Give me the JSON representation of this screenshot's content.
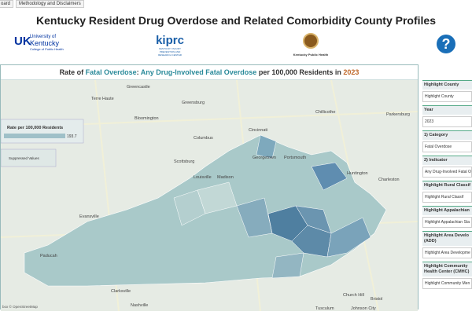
{
  "tabs": [
    "oard",
    "Methodology and Disclaimers"
  ],
  "header": {
    "title": "Kentucky Resident Drug Overdose and Related Comorbidity County Profiles",
    "logos": [
      {
        "mark": "UK",
        "name": "University of",
        "name2": "Kentucky",
        "sub": "College of Public Health"
      },
      {
        "mark": "kiprc",
        "sub": "KENTUCKY INJURY PREVENTION AND RESEARCH CENTER"
      },
      {
        "sub": "Kentucky Public Health"
      }
    ],
    "help": "?"
  },
  "map": {
    "title_parts": [
      "Rate of ",
      "Fatal Overdose",
      ": ",
      "Any Drug-Involved Fatal Overdose",
      " per 100,000 Residents in ",
      "2023"
    ],
    "legend": {
      "title": "Rate per 100,000 Residents",
      "max": "193.7",
      "suppressed": "Suppressed Values"
    },
    "places": [
      "Greencastle",
      "Greensburg",
      "Terre Haute",
      "Bloomington",
      "Cincinnati",
      "Chillicothe",
      "Parkersburg",
      "Portsmouth",
      "Huntington",
      "Charleston",
      "Georgetown",
      "Louisville",
      "Evansville",
      "Paducah",
      "Clarksville",
      "Nashville",
      "Church Hill",
      "Bristol",
      "Johnson City",
      "Tusculum",
      "Scottsburg",
      "Columbus",
      "Madison"
    ],
    "credit": "box © OpenStreetMap"
  },
  "panel": [
    {
      "head": "Highlight County",
      "value": "Highlight County"
    },
    {
      "head": "Year",
      "value": "2023"
    },
    {
      "head": "1) Category",
      "value": "Fatal Overdose"
    },
    {
      "head": "2) Indicator",
      "value": "Any Drug-Involved Fatal O"
    },
    {
      "head": "Highlight Rural Classif",
      "value": "Highlight Rural Classif"
    },
    {
      "head": "Highlight Appalachian",
      "value": "Highlight Appalachian Sta"
    },
    {
      "head": "Highlight Area Develo (ADD)",
      "value": "Highlight Area Developme"
    },
    {
      "head": "Highlight Community Health Center (CMHC)",
      "value": "Highlight Community Men"
    }
  ]
}
